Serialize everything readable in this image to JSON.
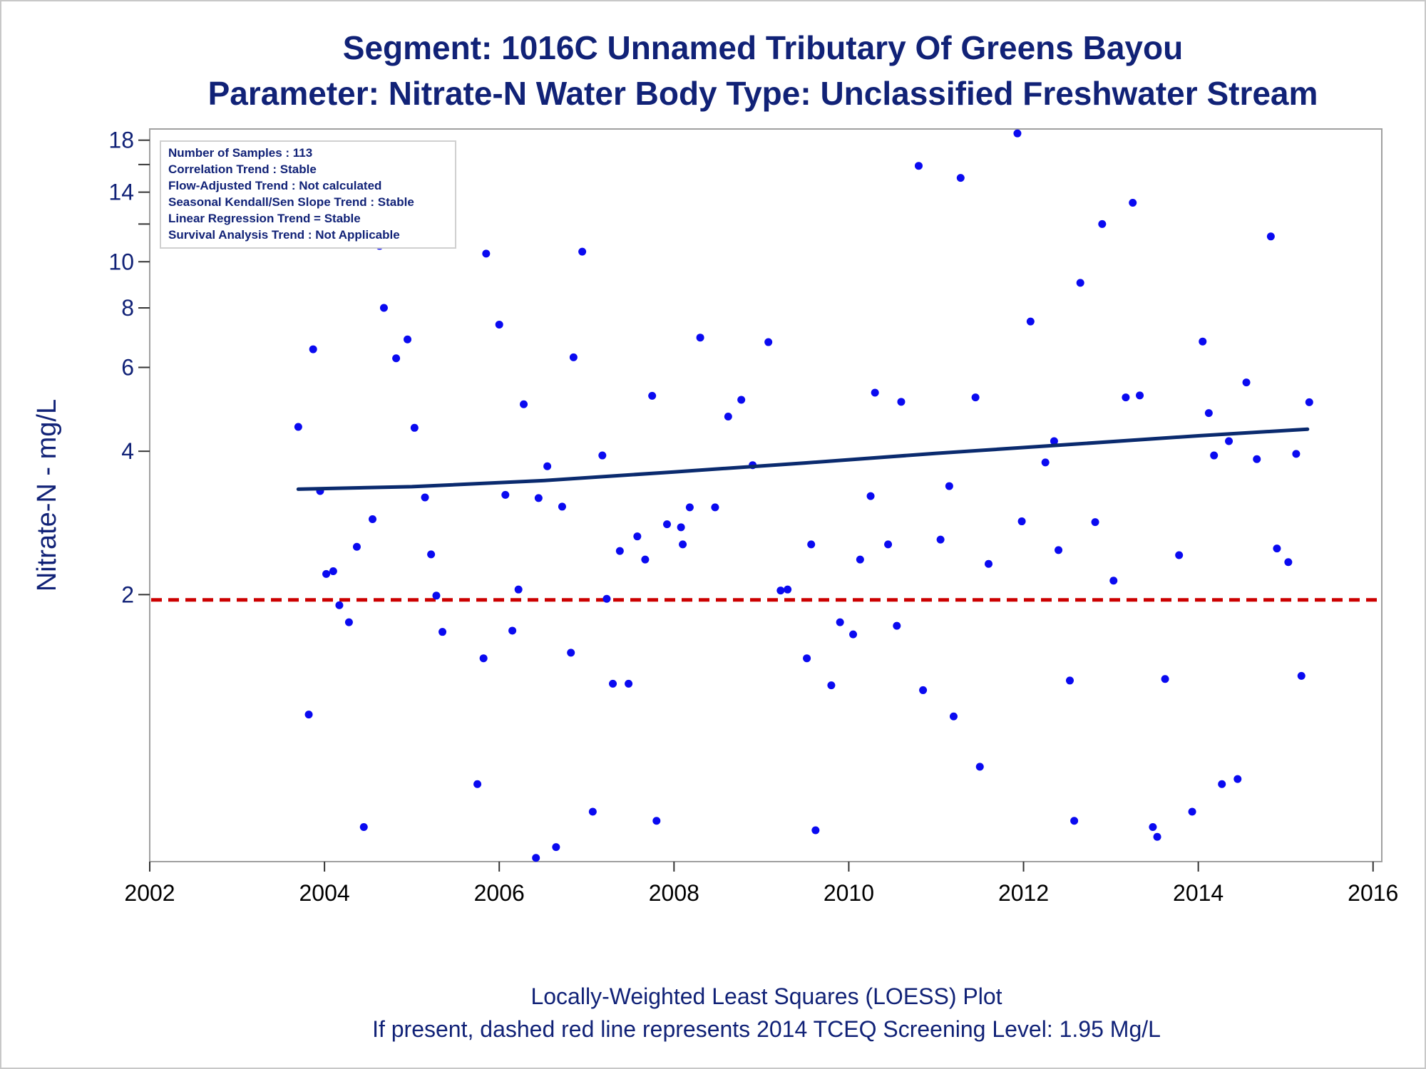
{
  "title": "Segment: 1016C  Unnamed Tributary Of Greens Bayou",
  "subtitle": "Parameter: Nitrate-N   Water Body Type: Unclassified Freshwater Stream",
  "footer": [
    "Locally-Weighted Least Squares (LOESS) Plot",
    "If present, dashed red line represents 2014 TCEQ Screening Level: 1.95 Mg/L"
  ],
  "legend_lines": [
    "Number of Samples : 113",
    "Correlation Trend : Stable",
    "Flow-Adjusted Trend : Not calculated",
    "Seasonal Kendall/Sen Slope Trend : Stable",
    "Linear Regression Trend = Stable",
    "Survival Analysis Trend : Not Applicable"
  ],
  "colors": {
    "points": "#0a0af0",
    "trend": "#0a2a6e",
    "screening": "#cc0000",
    "text": "#112277"
  },
  "chart_data": {
    "type": "scatter",
    "xlabel": "",
    "ylabel": "Nitrate-N - mg/L",
    "xlim": [
      2002,
      2016.1
    ],
    "ylim": [
      0.55,
      19
    ],
    "yscale": "log",
    "x_ticks": [
      2002,
      2004,
      2006,
      2008,
      2010,
      2012,
      2014,
      2016
    ],
    "y_ticks_labeled": [
      2,
      4,
      6,
      8,
      10,
      14,
      18
    ],
    "y_ticks_minor": [
      12,
      16
    ],
    "screening_level": 1.95,
    "trend_line": {
      "x": [
        2003.7,
        2005.0,
        2006.5,
        2008.0,
        2009.5,
        2011.0,
        2012.5,
        2014.0,
        2015.25
      ],
      "y": [
        3.33,
        3.37,
        3.47,
        3.62,
        3.78,
        3.96,
        4.13,
        4.31,
        4.45
      ]
    },
    "points": {
      "x": [
        2003.7,
        2003.82,
        2003.87,
        2003.95,
        2004.02,
        2004.1,
        2004.17,
        2004.28,
        2004.37,
        2004.45,
        2004.55,
        2004.63,
        2004.68,
        2004.82,
        2004.95,
        2005.03,
        2005.15,
        2005.22,
        2005.28,
        2005.35,
        2005.75,
        2005.82,
        2005.85,
        2006.0,
        2006.07,
        2006.15,
        2006.22,
        2006.28,
        2006.42,
        2006.45,
        2006.55,
        2006.65,
        2006.72,
        2006.82,
        2006.85,
        2006.95,
        2007.07,
        2007.18,
        2007.23,
        2007.3,
        2007.38,
        2007.48,
        2007.58,
        2007.67,
        2007.75,
        2007.8,
        2007.92,
        2008.08,
        2008.1,
        2008.18,
        2008.3,
        2008.47,
        2008.62,
        2008.77,
        2008.9,
        2009.08,
        2009.22,
        2009.3,
        2009.52,
        2009.57,
        2009.62,
        2009.8,
        2009.9,
        2010.05,
        2010.13,
        2010.25,
        2010.3,
        2010.45,
        2010.55,
        2010.6,
        2010.8,
        2010.85,
        2011.05,
        2011.15,
        2011.2,
        2011.28,
        2011.45,
        2011.5,
        2011.6,
        2011.93,
        2011.98,
        2012.08,
        2012.25,
        2012.35,
        2012.4,
        2012.53,
        2012.58,
        2012.65,
        2012.82,
        2012.9,
        2013.03,
        2013.17,
        2013.25,
        2013.33,
        2013.48,
        2013.53,
        2013.62,
        2013.78,
        2013.93,
        2014.05,
        2014.12,
        2014.18,
        2014.27,
        2014.35,
        2014.45,
        2014.55,
        2014.67,
        2014.83,
        2014.9,
        2015.03,
        2015.12,
        2015.18,
        2015.27
      ],
      "y": [
        4.5,
        1.12,
        6.55,
        3.3,
        2.21,
        2.24,
        1.9,
        1.75,
        2.52,
        0.65,
        2.88,
        10.8,
        8.0,
        6.27,
        6.87,
        4.48,
        3.2,
        2.43,
        1.99,
        1.67,
        0.8,
        1.47,
        10.4,
        7.38,
        3.24,
        1.68,
        2.05,
        5.02,
        0.56,
        3.19,
        3.72,
        0.59,
        3.06,
        1.51,
        6.3,
        10.5,
        0.7,
        3.92,
        1.96,
        1.3,
        2.47,
        1.3,
        2.65,
        2.37,
        5.23,
        0.67,
        2.81,
        2.77,
        2.55,
        3.05,
        6.93,
        3.05,
        4.73,
        5.13,
        3.74,
        6.78,
        2.04,
        2.05,
        1.47,
        2.55,
        0.64,
        1.29,
        1.75,
        1.65,
        2.37,
        3.22,
        5.31,
        2.55,
        1.72,
        5.08,
        15.9,
        1.26,
        2.61,
        3.38,
        1.11,
        15.0,
        5.19,
        0.87,
        2.32,
        18.6,
        2.85,
        7.49,
        3.79,
        4.2,
        2.48,
        1.32,
        0.67,
        9.03,
        2.84,
        12.0,
        2.14,
        5.19,
        13.3,
        5.24,
        0.65,
        0.62,
        1.33,
        2.42,
        0.7,
        6.8,
        4.81,
        3.92,
        0.8,
        4.2,
        0.82,
        5.58,
        3.85,
        11.3,
        2.5,
        2.34,
        3.95,
        1.35,
        5.07
      ]
    }
  }
}
